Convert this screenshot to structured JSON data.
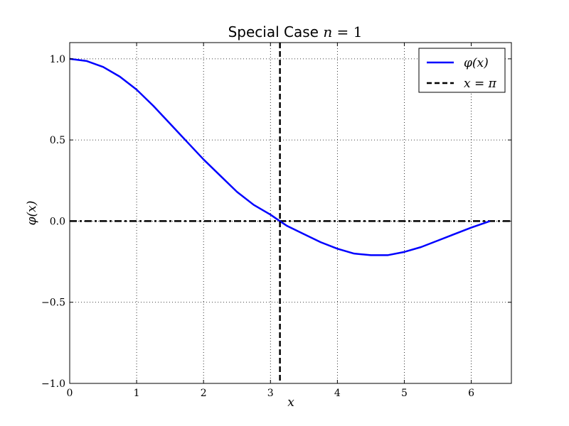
{
  "chart_data": {
    "type": "line",
    "title": "Special Case",
    "title_math": "n",
    "title_eq": " = ",
    "title_num": "1",
    "xlabel": "x",
    "ylabel": "φ(x)",
    "xlim": [
      0,
      6.6
    ],
    "ylim": [
      -1.0,
      1.0
    ],
    "xticks": [
      0,
      1,
      2,
      3,
      4,
      5,
      6
    ],
    "xtick_labels": [
      "0",
      "1",
      "2",
      "3",
      "4",
      "5",
      "6"
    ],
    "yticks": [
      -1.0,
      -0.5,
      0.0,
      0.5,
      1.0
    ],
    "ytick_labels": [
      "−1.0",
      "−0.5",
      "0.0",
      "0.5",
      "1.0"
    ],
    "grid": true,
    "legend_position": "top-right",
    "series": [
      {
        "name": "φ(x)",
        "color": "#0000ff",
        "style": "solid",
        "points": [
          [
            0.0,
            1.0
          ],
          [
            0.25,
            0.987
          ],
          [
            0.5,
            0.95
          ],
          [
            0.75,
            0.89
          ],
          [
            1.0,
            0.81
          ],
          [
            1.25,
            0.71
          ],
          [
            1.5,
            0.6
          ],
          [
            1.75,
            0.49
          ],
          [
            2.0,
            0.38
          ],
          [
            2.25,
            0.28
          ],
          [
            2.5,
            0.18
          ],
          [
            2.75,
            0.1
          ],
          [
            3.0,
            0.04
          ],
          [
            3.14,
            0.0
          ],
          [
            3.25,
            -0.03
          ],
          [
            3.5,
            -0.08
          ],
          [
            3.75,
            -0.13
          ],
          [
            4.0,
            -0.17
          ],
          [
            4.25,
            -0.2
          ],
          [
            4.5,
            -0.21
          ],
          [
            4.75,
            -0.21
          ],
          [
            5.0,
            -0.19
          ],
          [
            5.25,
            -0.16
          ],
          [
            5.5,
            -0.12
          ],
          [
            5.75,
            -0.08
          ],
          [
            6.0,
            -0.04
          ],
          [
            6.28,
            0.0
          ]
        ]
      },
      {
        "name": "x = π",
        "color": "#000000",
        "style": "dashed",
        "vline_x": 3.14159
      }
    ],
    "hline": {
      "y": 0.0,
      "color": "#000000",
      "style": "dashdot"
    }
  }
}
